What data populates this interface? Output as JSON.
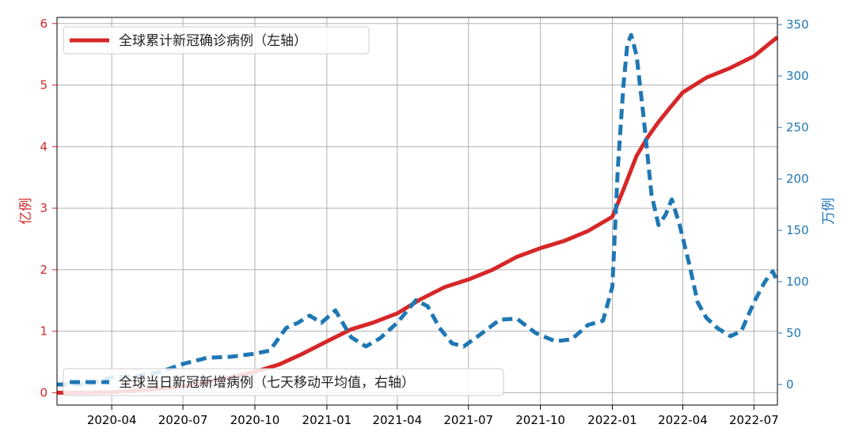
{
  "chart_data": {
    "type": "line",
    "x_axis": {
      "type": "date",
      "range": [
        "2020-01-22",
        "2022-07-31"
      ],
      "ticks": [
        "2020-04",
        "2020-07",
        "2020-10",
        "2021-01",
        "2021-04",
        "2021-07",
        "2021-10",
        "2022-01",
        "2022-04",
        "2022-07"
      ],
      "grid": true
    },
    "y_left": {
      "label": "亿例",
      "range": [
        -0.2,
        6.1
      ],
      "ticks": [
        "0",
        "1",
        "2",
        "3",
        "4",
        "5",
        "6"
      ],
      "color": "#d62728"
    },
    "y_right": {
      "label": "万例",
      "range": [
        -20,
        357
      ],
      "ticks": [
        "0",
        "50",
        "100",
        "150",
        "200",
        "250",
        "300",
        "350"
      ],
      "color": "#1f77b4"
    },
    "legend": {
      "left_series_placement": "upper-left",
      "right_series_placement": "lower-left"
    },
    "series": [
      {
        "name": "全球累计新冠确诊病例（左轴）",
        "axis": "left",
        "color": "#d62728",
        "style": "solid",
        "points": [
          [
            "2020-01-22",
            0.0
          ],
          [
            "2020-03-01",
            0.001
          ],
          [
            "2020-04-01",
            0.01
          ],
          [
            "2020-05-01",
            0.034
          ],
          [
            "2020-06-01",
            0.063
          ],
          [
            "2020-07-01",
            0.105
          ],
          [
            "2020-08-01",
            0.175
          ],
          [
            "2020-09-01",
            0.254
          ],
          [
            "2020-10-01",
            0.34
          ],
          [
            "2020-11-01",
            0.46
          ],
          [
            "2020-12-01",
            0.635
          ],
          [
            "2021-01-01",
            0.835
          ],
          [
            "2021-02-01",
            1.03
          ],
          [
            "2021-03-01",
            1.14
          ],
          [
            "2021-04-01",
            1.29
          ],
          [
            "2021-05-01",
            1.52
          ],
          [
            "2021-06-01",
            1.72
          ],
          [
            "2021-07-01",
            1.84
          ],
          [
            "2021-08-01",
            2.0
          ],
          [
            "2021-09-01",
            2.21
          ],
          [
            "2021-10-01",
            2.35
          ],
          [
            "2021-11-01",
            2.47
          ],
          [
            "2021-12-01",
            2.63
          ],
          [
            "2022-01-01",
            2.86
          ],
          [
            "2022-01-15",
            3.3
          ],
          [
            "2022-02-01",
            3.85
          ],
          [
            "2022-02-15",
            4.15
          ],
          [
            "2022-03-01",
            4.4
          ],
          [
            "2022-03-15",
            4.62
          ],
          [
            "2022-04-01",
            4.88
          ],
          [
            "2022-05-01",
            5.12
          ],
          [
            "2022-06-01",
            5.28
          ],
          [
            "2022-07-01",
            5.47
          ],
          [
            "2022-07-31",
            5.78
          ]
        ]
      },
      {
        "name": "全球当日新冠新增病例（七天移动平均值，右轴）",
        "axis": "right",
        "color": "#1f77b4",
        "style": "dashed",
        "points": [
          [
            "2020-01-22",
            0
          ],
          [
            "2020-03-01",
            0.3
          ],
          [
            "2020-04-01",
            7
          ],
          [
            "2020-05-01",
            8
          ],
          [
            "2020-06-01",
            12
          ],
          [
            "2020-07-01",
            20
          ],
          [
            "2020-08-01",
            26
          ],
          [
            "2020-09-01",
            27
          ],
          [
            "2020-10-01",
            30
          ],
          [
            "2020-10-20",
            33
          ],
          [
            "2020-11-10",
            55
          ],
          [
            "2020-11-25",
            60
          ],
          [
            "2020-12-10",
            67
          ],
          [
            "2020-12-25",
            60
          ],
          [
            "2021-01-12",
            72
          ],
          [
            "2021-02-01",
            46
          ],
          [
            "2021-02-20",
            37
          ],
          [
            "2021-03-10",
            45
          ],
          [
            "2021-04-01",
            60
          ],
          [
            "2021-04-25",
            82
          ],
          [
            "2021-05-10",
            76
          ],
          [
            "2021-05-25",
            55
          ],
          [
            "2021-06-10",
            40
          ],
          [
            "2021-06-25",
            37
          ],
          [
            "2021-07-15",
            48
          ],
          [
            "2021-08-10",
            63
          ],
          [
            "2021-09-01",
            64
          ],
          [
            "2021-09-25",
            50
          ],
          [
            "2021-10-20",
            42
          ],
          [
            "2021-11-10",
            44
          ],
          [
            "2021-12-01",
            58
          ],
          [
            "2021-12-20",
            62
          ],
          [
            "2022-01-01",
            95
          ],
          [
            "2022-01-08",
            210
          ],
          [
            "2022-01-15",
            290
          ],
          [
            "2022-01-20",
            330
          ],
          [
            "2022-01-25",
            340
          ],
          [
            "2022-02-01",
            320
          ],
          [
            "2022-02-10",
            260
          ],
          [
            "2022-02-20",
            185
          ],
          [
            "2022-03-01",
            155
          ],
          [
            "2022-03-10",
            165
          ],
          [
            "2022-03-18",
            180
          ],
          [
            "2022-03-28",
            155
          ],
          [
            "2022-04-10",
            115
          ],
          [
            "2022-04-20",
            80
          ],
          [
            "2022-05-01",
            65
          ],
          [
            "2022-05-15",
            55
          ],
          [
            "2022-06-01",
            47
          ],
          [
            "2022-06-15",
            52
          ],
          [
            "2022-07-01",
            80
          ],
          [
            "2022-07-15",
            100
          ],
          [
            "2022-07-25",
            110
          ],
          [
            "2022-07-31",
            100
          ]
        ]
      }
    ]
  }
}
